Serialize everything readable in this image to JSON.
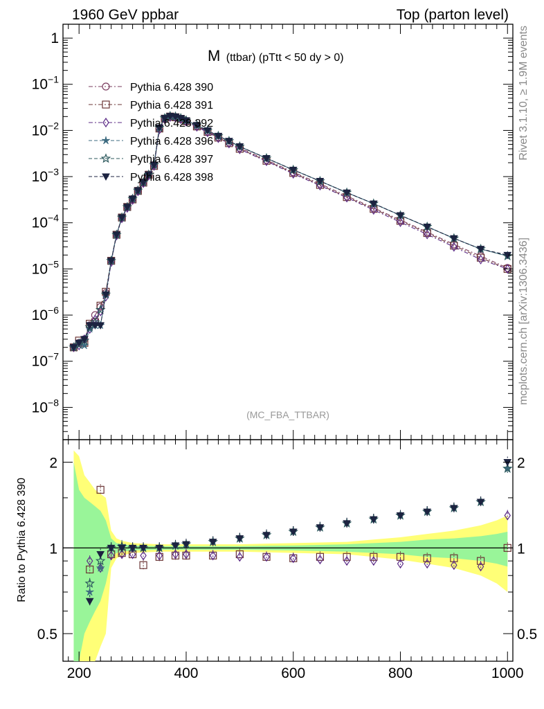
{
  "header": {
    "left": "1960 GeV ppbar",
    "right": "Top (parton level)"
  },
  "side_labels": {
    "rivet": "Rivet 3.1.10, ≥ 1.9M events",
    "mcplots": "mcplots.cern.ch [arXiv:1306.3436]"
  },
  "analysis_tag": "(MC_FBA_TTBAR)",
  "chart_data": [
    {
      "type": "line",
      "panel": "main",
      "title_main": "M",
      "title_sub": "(ttbar) (pTtt < 50 dy > 0)",
      "xlabel": "",
      "ylabel": "",
      "xlim": [
        170,
        1010
      ],
      "ylim": [
        2e-09,
        2
      ],
      "yscale": "log",
      "ytick_labels": [
        "1",
        "10^-1",
        "10^-2",
        "10^-3",
        "10^-4",
        "10^-5",
        "10^-6",
        "10^-7",
        "10^-8"
      ],
      "legend_position": "top-left",
      "x": [
        190,
        200,
        210,
        220,
        230,
        240,
        250,
        260,
        270,
        280,
        290,
        300,
        310,
        320,
        330,
        340,
        350,
        360,
        370,
        380,
        390,
        400,
        420,
        440,
        460,
        480,
        500,
        550,
        600,
        650,
        700,
        750,
        800,
        850,
        900,
        950,
        1000
      ],
      "series": [
        {
          "name": "Pythia 6.428 390",
          "color": "#7a3b5e",
          "marker": "circle",
          "dash": "dash-dot",
          "values": [
            2e-07,
            2.5e-07,
            3e-07,
            6e-07,
            1e-06,
            1.5e-06,
            3e-06,
            1.5e-05,
            5.5e-05,
            0.00013,
            0.00022,
            0.00033,
            0.0005,
            0.00075,
            0.0011,
            0.0018,
            0.011,
            0.018,
            0.02,
            0.0195,
            0.018,
            0.016,
            0.0125,
            0.0095,
            0.0072,
            0.0055,
            0.0042,
            0.0023,
            0.00125,
            0.0007,
            0.00038,
            0.00021,
            0.000115,
            6.3e-05,
            3.4e-05,
            1.9e-05,
            1.05e-05
          ]
        },
        {
          "name": "Pythia 6.428 391",
          "color": "#6b3535",
          "marker": "square",
          "dash": "dash-dot",
          "values": [
            2e-07,
            2.8e-07,
            2.5e-07,
            6.5e-07,
            7e-07,
            1.6e-06,
            3.2e-06,
            1.5e-05,
            5.5e-05,
            0.00013,
            0.00022,
            0.00032,
            0.00049,
            0.00074,
            0.0011,
            0.0017,
            0.011,
            0.018,
            0.02,
            0.0193,
            0.0178,
            0.0158,
            0.0122,
            0.0093,
            0.007,
            0.0053,
            0.004,
            0.0022,
            0.0012,
            0.00066,
            0.00036,
            0.0002,
            0.00011,
            6e-05,
            3.2e-05,
            1.75e-05,
            1e-05
          ]
        },
        {
          "name": "Pythia 6.428 392",
          "color": "#5b2a86",
          "marker": "diamond",
          "dash": "dash-dot",
          "values": [
            2e-07,
            2.2e-07,
            3e-07,
            5e-07,
            8e-07,
            1.2e-06,
            2.5e-06,
            1.4e-05,
            5.3e-05,
            0.000125,
            0.00021,
            0.00031,
            0.00048,
            0.00072,
            0.00105,
            0.0017,
            0.0105,
            0.0175,
            0.0195,
            0.019,
            0.0175,
            0.0155,
            0.012,
            0.0091,
            0.0068,
            0.0052,
            0.0039,
            0.00215,
            0.00115,
            0.00064,
            0.00035,
            0.00019,
            0.000103,
            5.6e-05,
            3e-05,
            1.6e-05,
            1e-05
          ]
        },
        {
          "name": "Pythia 6.428 396",
          "color": "#3d6b80",
          "marker": "star4",
          "dash": "dash",
          "values": [
            2e-07,
            2.5e-07,
            2.2e-07,
            5e-07,
            6e-07,
            6e-07,
            2.8e-06,
            1.5e-05,
            5.5e-05,
            0.00013,
            0.00022,
            0.00033,
            0.0005,
            0.00075,
            0.0011,
            0.0018,
            0.0115,
            0.0185,
            0.0205,
            0.02,
            0.0185,
            0.0165,
            0.013,
            0.01,
            0.0076,
            0.0059,
            0.0045,
            0.0025,
            0.0014,
            0.0008,
            0.00045,
            0.00026,
            0.000145,
            8.2e-05,
            4.6e-05,
            2.7e-05,
            1.9e-05
          ]
        },
        {
          "name": "Pythia 6.428 397",
          "color": "#2e5a5e",
          "marker": "star",
          "dash": "dash",
          "values": [
            2e-07,
            2.3e-07,
            2.8e-07,
            5.5e-07,
            7e-07,
            1.3e-06,
            2.8e-06,
            1.5e-05,
            5.5e-05,
            0.00013,
            0.00022,
            0.00033,
            0.0005,
            0.00075,
            0.0011,
            0.0018,
            0.0115,
            0.0185,
            0.0205,
            0.02,
            0.0185,
            0.0165,
            0.013,
            0.01,
            0.0076,
            0.0059,
            0.0045,
            0.0025,
            0.0014,
            0.0008,
            0.00045,
            0.00026,
            0.000145,
            8.2e-05,
            4.6e-05,
            2.7e-05,
            1.9e-05
          ]
        },
        {
          "name": "Pythia 6.428 398",
          "color": "#1c2340",
          "marker": "triangle-down",
          "dash": "dash",
          "values": [
            2e-07,
            2.5e-07,
            3e-07,
            6e-07,
            6e-07,
            6e-07,
            2.8e-06,
            1.5e-05,
            5.5e-05,
            0.00013,
            0.00022,
            0.00033,
            0.0005,
            0.00075,
            0.0011,
            0.0018,
            0.0115,
            0.0185,
            0.0205,
            0.02,
            0.0185,
            0.0165,
            0.013,
            0.01,
            0.0076,
            0.0059,
            0.0045,
            0.0025,
            0.0014,
            0.0008,
            0.00045,
            0.00026,
            0.000145,
            8.2e-05,
            4.6e-05,
            2.7e-05,
            2e-05
          ]
        }
      ]
    },
    {
      "type": "line",
      "panel": "ratio",
      "xlabel": "",
      "ylabel": "Ratio to Pythia 6.428 390",
      "xlim": [
        170,
        1010
      ],
      "ylim": [
        0.4,
        2.4
      ],
      "yscale": "log",
      "ytick_labels": [
        "2",
        "1",
        "0.5"
      ],
      "xtick_labels": [
        "200",
        "400",
        "600",
        "800",
        "1000"
      ],
      "reference_line": 1,
      "bands": {
        "green_color": "#99f599",
        "yellow_color": "#ffff77",
        "x": [
          190,
          200,
          210,
          220,
          230,
          240,
          250,
          260,
          270,
          280,
          290,
          300,
          350,
          400,
          500,
          600,
          700,
          750,
          800,
          850,
          900,
          950,
          980,
          1000
        ],
        "green_half": [
          1.0,
          0.6,
          0.5,
          0.45,
          0.4,
          0.35,
          0.25,
          0.08,
          0.04,
          0.03,
          0.025,
          0.02,
          0.015,
          0.015,
          0.015,
          0.02,
          0.03,
          0.04,
          0.05,
          0.07,
          0.08,
          0.1,
          0.12,
          0.14
        ],
        "yellow_half": [
          1.2,
          1.1,
          0.8,
          0.7,
          0.6,
          0.55,
          0.5,
          0.15,
          0.08,
          0.06,
          0.05,
          0.04,
          0.03,
          0.03,
          0.03,
          0.04,
          0.05,
          0.07,
          0.09,
          0.12,
          0.15,
          0.2,
          0.25,
          0.3
        ]
      },
      "x": [
        220,
        240,
        260,
        280,
        300,
        320,
        350,
        380,
        400,
        450,
        500,
        550,
        600,
        650,
        700,
        750,
        800,
        850,
        900,
        950,
        1000
      ],
      "series": [
        {
          "name": "Pythia 6.428 391",
          "color": "#6b3535",
          "marker": "square",
          "values": [
            0.84,
            1.6,
            0.95,
            0.96,
            0.95,
            0.87,
            0.93,
            0.94,
            0.94,
            0.94,
            0.95,
            0.93,
            0.92,
            0.93,
            0.93,
            0.93,
            0.93,
            0.92,
            0.92,
            0.9,
            1.0
          ]
        },
        {
          "name": "Pythia 6.428 392",
          "color": "#5b2a86",
          "marker": "diamond",
          "values": [
            0.9,
            0.85,
            0.94,
            0.95,
            0.95,
            0.94,
            0.94,
            0.95,
            0.95,
            0.94,
            0.93,
            0.93,
            0.92,
            0.91,
            0.9,
            0.9,
            0.88,
            0.88,
            0.87,
            0.86,
            1.3
          ]
        },
        {
          "name": "Pythia 6.428 396",
          "color": "#3d6b80",
          "marker": "star4",
          "values": [
            0.7,
            0.85,
            1.0,
            1.02,
            1.0,
            1.0,
            1.0,
            1.02,
            1.03,
            1.05,
            1.08,
            1.11,
            1.14,
            1.18,
            1.22,
            1.26,
            1.3,
            1.34,
            1.38,
            1.45,
            1.9
          ]
        },
        {
          "name": "Pythia 6.428 397",
          "color": "#2e5a5e",
          "marker": "star",
          "values": [
            0.75,
            0.9,
            1.0,
            1.01,
            1.0,
            1.0,
            1.0,
            1.02,
            1.03,
            1.05,
            1.08,
            1.11,
            1.14,
            1.18,
            1.22,
            1.26,
            1.3,
            1.34,
            1.38,
            1.45,
            1.9
          ]
        },
        {
          "name": "Pythia 6.428 398",
          "color": "#1c2340",
          "marker": "triangle-down",
          "values": [
            0.65,
            0.95,
            1.0,
            1.0,
            1.0,
            1.0,
            1.0,
            1.02,
            1.03,
            1.05,
            1.08,
            1.11,
            1.14,
            1.18,
            1.22,
            1.26,
            1.3,
            1.34,
            1.38,
            1.45,
            2.0
          ]
        }
      ]
    }
  ]
}
